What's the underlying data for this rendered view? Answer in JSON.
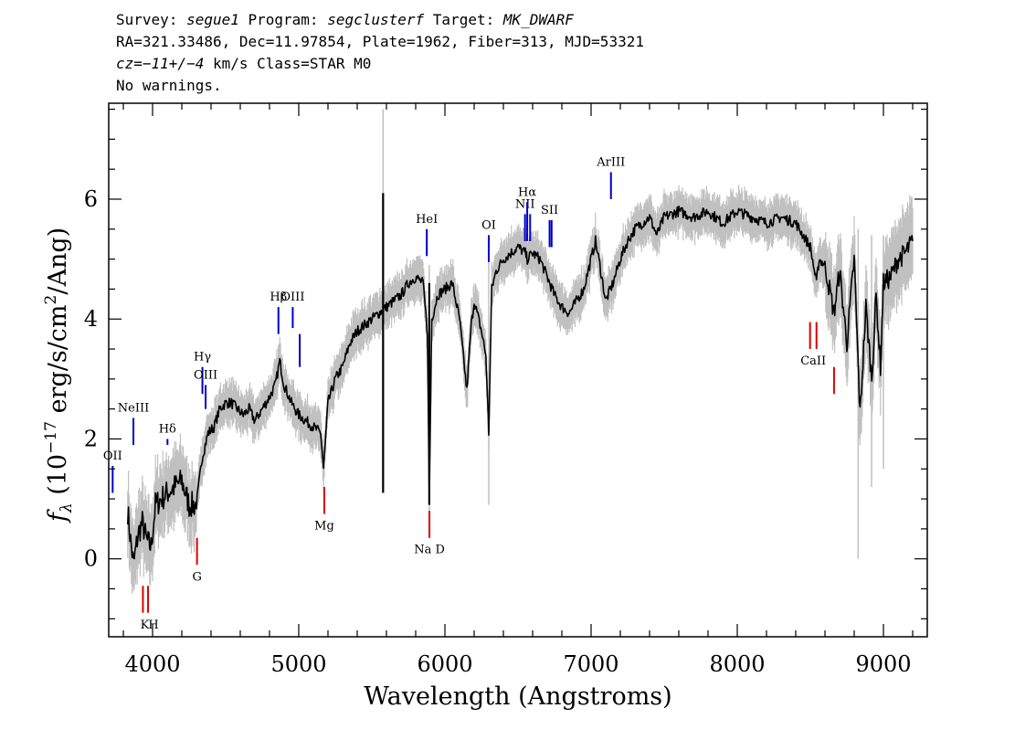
{
  "header": {
    "line1": {
      "survey_label": "Survey: ",
      "survey": "segue1",
      "program_label": " Program: ",
      "program": "segclusterf",
      "target_label": " Target: ",
      "target": "MK_DWARF"
    },
    "line2": "RA=321.33486, Dec=11.97854, Plate=1962, Fiber=313, MJD=53321",
    "line3": {
      "cz": "cz=−11+/−4",
      "rest": " km/s Class=STAR M0"
    },
    "line4": "No warnings."
  },
  "chart_data": {
    "type": "line",
    "xlabel": "Wavelength (Angstroms)",
    "ylabel": "f_λ (10^-17 erg/s/cm^2/Ang)",
    "ylabel_parts": {
      "prefix": "f",
      "sub": "λ",
      "unit_a": " (10",
      "exp1": "−17",
      "unit_b": " erg/s/cm",
      "exp2": "2",
      "unit_c": "/Ang)"
    },
    "xlim": [
      3700,
      9300
    ],
    "ylim": [
      -1.3,
      7.6
    ],
    "xticks": [
      4000,
      5000,
      6000,
      7000,
      8000,
      9000
    ],
    "yticks": [
      0,
      2,
      4,
      6
    ],
    "xtick_labels": [
      "4000",
      "5000",
      "6000",
      "7000",
      "8000",
      "9000"
    ],
    "ytick_labels": [
      "0",
      "2",
      "4",
      "6"
    ],
    "grid": false,
    "series": [
      {
        "color": "#000000",
        "x": [
          3830,
          3850,
          3870,
          3900,
          3930,
          3960,
          3990,
          4020,
          4060,
          4100,
          4150,
          4200,
          4250,
          4300,
          4340,
          4380,
          4420,
          4460,
          4500,
          4540,
          4580,
          4620,
          4660,
          4700,
          4750,
          4800,
          4840,
          4870,
          4900,
          4950,
          5000,
          5050,
          5100,
          5150,
          5170,
          5200,
          5250,
          5300,
          5350,
          5400,
          5450,
          5500,
          5550,
          5600,
          5650,
          5700,
          5750,
          5800,
          5850,
          5880,
          5893,
          5910,
          5950,
          6000,
          6050,
          6100,
          6150,
          6180,
          6200,
          6250,
          6280,
          6300,
          6320,
          6350,
          6400,
          6450,
          6500,
          6550,
          6563,
          6600,
          6650,
          6700,
          6750,
          6800,
          6850,
          6900,
          6950,
          7000,
          7030,
          7060,
          7100,
          7150,
          7200,
          7250,
          7300,
          7350,
          7400,
          7450,
          7500,
          7600,
          7700,
          7800,
          7900,
          8000,
          8100,
          8200,
          8300,
          8400,
          8500,
          8542,
          8560,
          8600,
          8662,
          8700,
          8750,
          8800,
          8840,
          8880,
          8920,
          8950,
          8980,
          9000,
          9050,
          9100,
          9150,
          9200
        ],
        "y": [
          0.8,
          0.3,
          -0.1,
          0.4,
          0.6,
          0.3,
          0.2,
          0.9,
          1.0,
          1.1,
          1.2,
          1.3,
          0.9,
          0.9,
          1.7,
          2.1,
          2.2,
          2.5,
          2.6,
          2.6,
          2.5,
          2.4,
          2.5,
          2.3,
          2.5,
          2.7,
          2.9,
          3.3,
          2.9,
          2.6,
          2.4,
          2.3,
          2.2,
          2.1,
          1.5,
          2.6,
          3.0,
          3.2,
          3.6,
          3.8,
          3.9,
          4.0,
          4.1,
          4.2,
          4.3,
          4.4,
          4.6,
          4.7,
          4.6,
          3.8,
          1.0,
          4.0,
          4.4,
          4.5,
          4.6,
          4.0,
          2.8,
          3.9,
          4.3,
          3.8,
          3.4,
          2.1,
          4.5,
          4.8,
          5.0,
          5.1,
          5.2,
          5.1,
          5.0,
          5.1,
          5.0,
          4.7,
          4.4,
          4.2,
          4.1,
          4.3,
          4.5,
          5.0,
          5.3,
          4.9,
          4.3,
          4.6,
          5.0,
          5.3,
          5.5,
          5.6,
          5.7,
          5.4,
          5.7,
          5.8,
          5.7,
          5.8,
          5.6,
          5.8,
          5.7,
          5.6,
          5.7,
          5.6,
          5.2,
          4.6,
          5.0,
          4.9,
          4.1,
          4.8,
          3.6,
          5.0,
          2.4,
          4.2,
          3.0,
          4.4,
          3.2,
          4.6,
          4.7,
          5.0,
          5.1,
          5.3
        ]
      },
      {
        "color": "#c0c0c0",
        "note": "noise envelope"
      }
    ],
    "annotations": [
      {
        "label": "OII",
        "wave": 3727,
        "color": "blue",
        "y_from": 1.1,
        "y_to": 1.55
      },
      {
        "label": "NeIII",
        "wave": 3869,
        "color": "blue",
        "y_from": 1.9,
        "y_to": 2.35
      },
      {
        "label": "Hδ",
        "wave": 4102,
        "color": "blue",
        "y_from": 1.9,
        "y_to": 2.0
      },
      {
        "label": "Hγ",
        "wave": 4341,
        "color": "blue",
        "y_from": 2.75,
        "y_to": 3.2
      },
      {
        "label": "OIII",
        "wave": 4363,
        "color": "blue",
        "y_from": 2.5,
        "y_to": 2.9
      },
      {
        "label": "Hβ",
        "wave": 4861,
        "color": "blue",
        "y_from": 3.75,
        "y_to": 4.2
      },
      {
        "label": "OIII",
        "wave": 4959,
        "color": "blue",
        "y_from": 3.85,
        "y_to": 4.2
      },
      {
        "label": "OIII",
        "wave": 5007,
        "color": "blue",
        "y_from": 3.2,
        "y_to": 3.75
      },
      {
        "label": "HeI",
        "wave": 5876,
        "color": "blue",
        "y_from": 5.05,
        "y_to": 5.5
      },
      {
        "label": "OI",
        "wave": 6300,
        "color": "blue",
        "y_from": 4.95,
        "y_to": 5.4
      },
      {
        "label": "NII",
        "wave": 6548,
        "color": "blue",
        "y_from": 5.3,
        "y_to": 5.75
      },
      {
        "label": "Hα",
        "wave": 6563,
        "color": "blue",
        "y_from": 5.3,
        "y_to": 5.95
      },
      {
        "label": "NII",
        "wave": 6583,
        "color": "blue",
        "y_from": 5.3,
        "y_to": 5.75
      },
      {
        "label": "SII",
        "wave": 6716,
        "color": "blue",
        "y_from": 5.2,
        "y_to": 5.65
      },
      {
        "label": "SII",
        "wave": 6730,
        "color": "blue",
        "y_from": 5.2,
        "y_to": 5.65
      },
      {
        "label": "ArIII",
        "wave": 7136,
        "color": "blue",
        "y_from": 6.0,
        "y_to": 6.45
      },
      {
        "label": "K",
        "wave": 3934,
        "color": "red",
        "y_from": -0.9,
        "y_to": -0.45
      },
      {
        "label": "H",
        "wave": 3969,
        "color": "red",
        "y_from": -0.9,
        "y_to": -0.45
      },
      {
        "label": "G",
        "wave": 4304,
        "color": "red",
        "y_from": -0.1,
        "y_to": 0.35
      },
      {
        "label": "Mg",
        "wave": 5175,
        "color": "red",
        "y_from": 0.75,
        "y_to": 1.2
      },
      {
        "label": "Na D",
        "wave": 5894,
        "color": "red",
        "y_from": 0.35,
        "y_to": 0.8
      },
      {
        "label": "CaII",
        "wave": 8498,
        "color": "red",
        "y_from": 3.5,
        "y_to": 3.95
      },
      {
        "label": "CaII",
        "wave": 8542,
        "color": "red",
        "y_from": 3.5,
        "y_to": 3.95
      },
      {
        "label": "CaII",
        "wave": 8662,
        "color": "red",
        "y_from": 2.75,
        "y_to": 3.2
      }
    ]
  }
}
